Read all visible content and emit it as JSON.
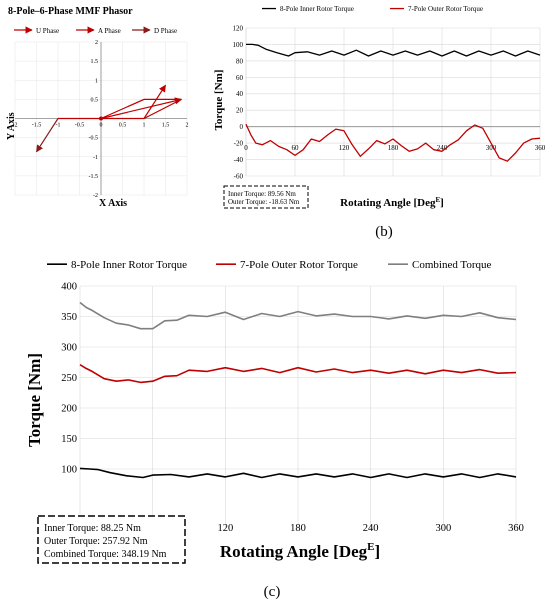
{
  "panel_labels": {
    "b": "(b)",
    "c": "(c)"
  },
  "chart_data": [
    {
      "type": "phasor",
      "title": "8-Pole–6-Phase MMF Phasor",
      "xlabel": "X Axis",
      "ylabel": "Y Axis",
      "xlim": [
        -2,
        2
      ],
      "ylim": [
        -2,
        2
      ],
      "xticks": [
        "-2",
        "-1.5",
        "-1",
        "-0.5",
        "0",
        "0.5",
        "1",
        "1.5",
        "2"
      ],
      "yticks": [
        "-2",
        "-1.5",
        "-1",
        "-0.5",
        "0",
        "0.5",
        "1",
        "1.5",
        "2"
      ],
      "legend": [
        "U Phase",
        "A Phase",
        "D Phase"
      ],
      "colors": [
        "#c00000",
        "#c00000",
        "#8b1a1a"
      ],
      "polyline": [
        [
          -1,
          0
        ],
        [
          1,
          0
        ],
        [
          1.87,
          0.5
        ],
        [
          1,
          0.5
        ],
        [
          0,
          0
        ]
      ],
      "arrows": [
        {
          "name": "U Phase",
          "from": [
            1,
            0
          ],
          "to": [
            1.5,
            0.87
          ]
        },
        {
          "name": "A Phase",
          "from": [
            0,
            0
          ],
          "to": [
            1.87,
            0.5
          ]
        },
        {
          "name": "D Phase",
          "from": [
            -1,
            0
          ],
          "to": [
            -1.5,
            -0.87
          ]
        }
      ],
      "point": [
        0,
        0
      ]
    },
    {
      "type": "line",
      "ylabel": "Torque [Nm]",
      "xlabel": "Rotating Angle [Deg",
      "xlabel_sup": "E",
      "xlabel_close": "]",
      "xlim": [
        0,
        360
      ],
      "ylim": [
        -60,
        120
      ],
      "xticks": [
        "0",
        "60",
        "120",
        "180",
        "240",
        "300",
        "360"
      ],
      "yticks": [
        "-60",
        "-40",
        "-20",
        "0",
        "20",
        "40",
        "60",
        "80",
        "100",
        "120"
      ],
      "series": [
        {
          "name": "8-Pole Inner Rotor Torque",
          "color": "#000000",
          "x": [
            0,
            8,
            15,
            25,
            38,
            52,
            60,
            75,
            90,
            105,
            120,
            135,
            150,
            165,
            180,
            195,
            210,
            225,
            240,
            255,
            270,
            285,
            300,
            315,
            330,
            345,
            360
          ],
          "y": [
            100,
            100,
            99,
            94,
            90,
            86,
            90,
            91,
            87,
            92,
            87,
            93,
            86,
            92,
            87,
            92,
            87,
            92,
            86,
            92,
            86,
            92,
            87,
            92,
            86,
            92,
            87
          ]
        },
        {
          "name": "7-Pole Outer Rotor Torque",
          "color": "#c00000",
          "x": [
            0,
            6,
            12,
            20,
            30,
            40,
            50,
            60,
            70,
            80,
            90,
            100,
            110,
            120,
            130,
            140,
            150,
            160,
            170,
            180,
            190,
            200,
            210,
            220,
            230,
            240,
            250,
            260,
            270,
            280,
            290,
            300,
            310,
            320,
            330,
            340,
            350,
            360
          ],
          "y": [
            3,
            -10,
            -20,
            -22,
            -17,
            -24,
            -28,
            -35,
            -28,
            -15,
            -18,
            -10,
            -3,
            -5,
            -22,
            -36,
            -27,
            -17,
            -21,
            -15,
            -23,
            -30,
            -27,
            -20,
            -28,
            -30,
            -22,
            -16,
            -5,
            2,
            -2,
            -20,
            -38,
            -42,
            -32,
            -20,
            -15,
            -14
          ]
        }
      ],
      "annotation": [
        "Inner Torque: 89.56 Nm",
        "Outer Torque: -18.63 Nm"
      ]
    },
    {
      "type": "line",
      "ylabel": "Torque [Nm]",
      "xlabel": "Rotating Angle [Deg",
      "xlabel_sup": "E",
      "xlabel_close": "]",
      "xlim": [
        0,
        360
      ],
      "ylim": [
        0,
        400
      ],
      "xticks": [
        "60",
        "120",
        "180",
        "240",
        "300",
        "360"
      ],
      "yticks": [
        "100",
        "150",
        "200",
        "250",
        "300",
        "350",
        "400"
      ],
      "series": [
        {
          "name": "8-Pole Inner Rotor Torque",
          "color": "#000000",
          "x": [
            0,
            8,
            15,
            25,
            38,
            52,
            60,
            75,
            90,
            105,
            120,
            135,
            150,
            165,
            180,
            195,
            210,
            225,
            240,
            255,
            270,
            285,
            300,
            315,
            330,
            345,
            360
          ],
          "y": [
            101,
            100,
            99,
            94,
            89,
            86,
            90,
            91,
            87,
            92,
            87,
            93,
            86,
            92,
            87,
            92,
            87,
            92,
            86,
            92,
            86,
            92,
            87,
            92,
            86,
            92,
            87
          ]
        },
        {
          "name": "7-Pole Outer Rotor Torque",
          "color": "#c00000",
          "x": [
            0,
            5,
            10,
            20,
            30,
            40,
            50,
            60,
            70,
            80,
            90,
            105,
            120,
            135,
            150,
            165,
            180,
            195,
            210,
            225,
            240,
            255,
            270,
            285,
            300,
            315,
            330,
            345,
            360
          ],
          "y": [
            271,
            265,
            260,
            248,
            244,
            246,
            242,
            244,
            252,
            253,
            262,
            260,
            266,
            260,
            265,
            258,
            266,
            259,
            264,
            258,
            262,
            257,
            262,
            256,
            262,
            258,
            263,
            257,
            258
          ]
        },
        {
          "name": "Combined Torque",
          "color": "#7f7f7f",
          "x": [
            0,
            5,
            10,
            20,
            30,
            40,
            50,
            60,
            70,
            80,
            90,
            105,
            120,
            135,
            150,
            165,
            180,
            195,
            210,
            225,
            240,
            255,
            270,
            285,
            300,
            315,
            330,
            345,
            360
          ],
          "y": [
            373,
            365,
            360,
            348,
            339,
            336,
            330,
            330,
            343,
            344,
            352,
            350,
            357,
            345,
            355,
            350,
            358,
            351,
            354,
            350,
            350,
            346,
            351,
            347,
            352,
            350,
            356,
            348,
            345
          ]
        }
      ],
      "annotation": [
        "Inner Torque: 88.25 Nm",
        "Outer Torque: 257.92 Nm",
        "Combined Torque: 348.19 Nm"
      ]
    }
  ]
}
